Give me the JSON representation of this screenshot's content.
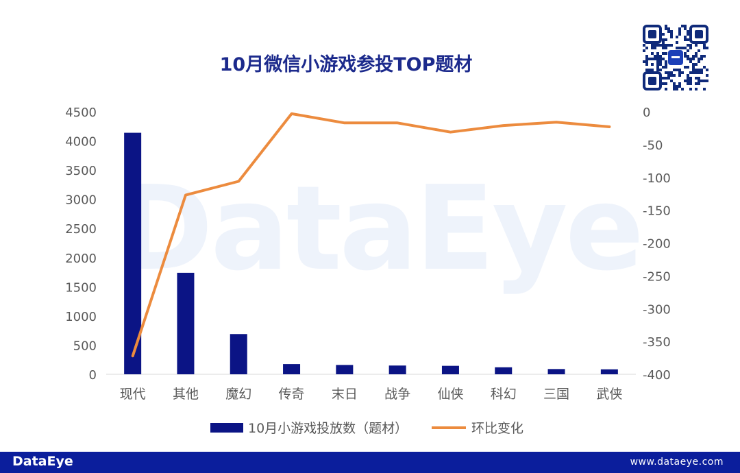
{
  "chart_data": {
    "type": "bar",
    "title": "10月微信小游戏参投TOP题材",
    "categories": [
      "现代",
      "其他",
      "魔幻",
      "传奇",
      "末日",
      "战争",
      "仙侠",
      "科幻",
      "三国",
      "武侠"
    ],
    "series": [
      {
        "name": "10月小游戏投放数（题材）",
        "type": "bar",
        "axis": "left",
        "color": "#0b1485",
        "values": [
          4140,
          1740,
          690,
          175,
          160,
          150,
          145,
          120,
          90,
          85
        ]
      },
      {
        "name": "环比变化",
        "type": "line",
        "axis": "right",
        "color": "#ec8b3e",
        "values": [
          -372,
          -127,
          -106,
          -3,
          -17,
          -17,
          -31,
          -21,
          -16,
          -23
        ]
      }
    ],
    "y_left": {
      "min": 0,
      "max": 4500,
      "ticks": [
        "0",
        "500",
        "1000",
        "1500",
        "2000",
        "2500",
        "3000",
        "3500",
        "4000",
        "4500"
      ]
    },
    "y_right": {
      "min": -400,
      "max": 0,
      "ticks": [
        "0",
        "-50",
        "-100",
        "-150",
        "-200",
        "-250",
        "-300",
        "-350",
        "-400"
      ]
    },
    "grid": false,
    "legend_position": "bottom"
  },
  "watermark": "DataEye",
  "footer": {
    "logo": "DataEye",
    "url": "www.dataeye.com"
  }
}
